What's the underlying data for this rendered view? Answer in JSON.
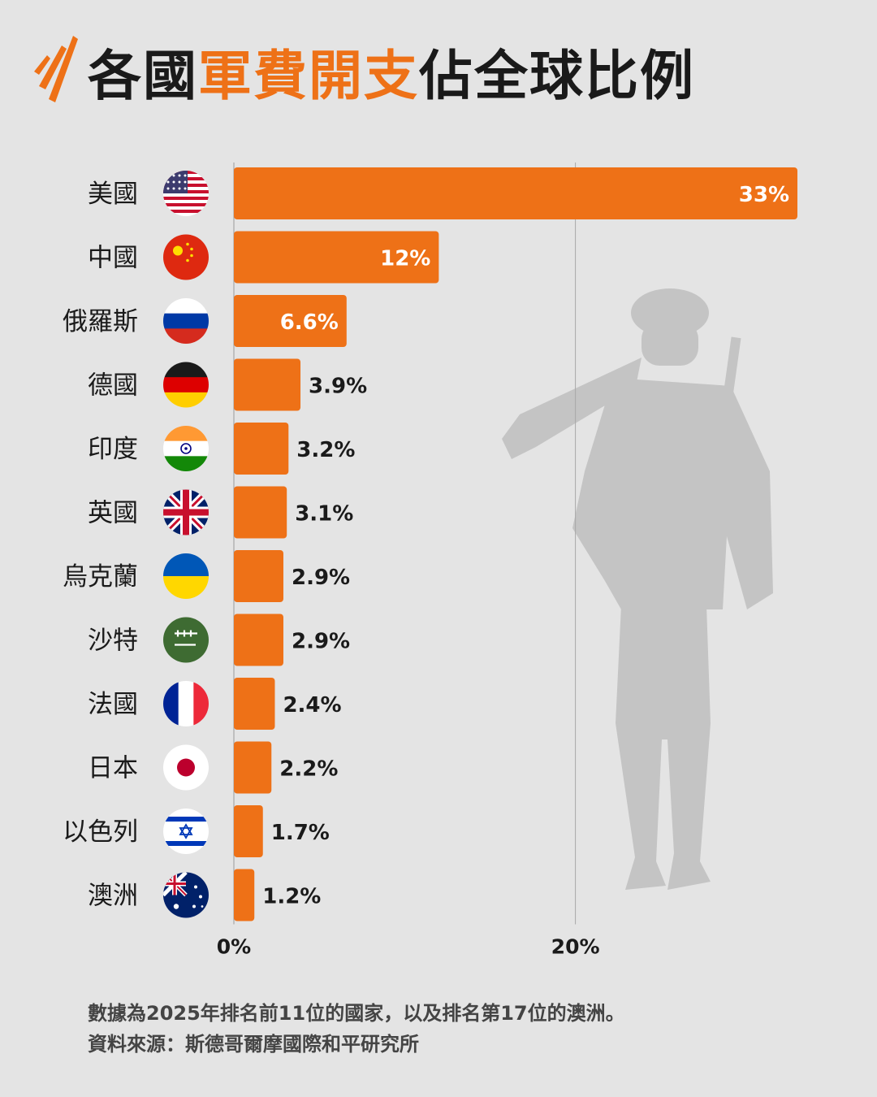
{
  "title": {
    "part1": "各國",
    "highlight": "軍費開支",
    "part2": "佔全球比例"
  },
  "colors": {
    "accent": "#ee7117",
    "background": "#e4e4e4",
    "text": "#1a1a1a",
    "silhouette": "#c4c4c4"
  },
  "chart_data": {
    "type": "bar",
    "orientation": "horizontal",
    "categories": [
      "美國",
      "中國",
      "俄羅斯",
      "德國",
      "印度",
      "英國",
      "烏克蘭",
      "沙特",
      "法國",
      "日本",
      "以色列",
      "澳洲"
    ],
    "flags": [
      "us-flag-icon",
      "china-flag-icon",
      "russia-flag-icon",
      "germany-flag-icon",
      "india-flag-icon",
      "uk-flag-icon",
      "ukraine-flag-icon",
      "saudi-flag-icon",
      "france-flag-icon",
      "japan-flag-icon",
      "israel-flag-icon",
      "australia-flag-icon"
    ],
    "values": [
      33,
      12,
      6.6,
      3.9,
      3.2,
      3.1,
      2.9,
      2.9,
      2.4,
      2.2,
      1.7,
      1.2
    ],
    "value_labels": [
      "33%",
      "12%",
      "6.6%",
      "3.9%",
      "3.2%",
      "3.1%",
      "2.9%",
      "2.9%",
      "2.4%",
      "2.2%",
      "1.7%",
      "1.2%"
    ],
    "x_ticks": [
      0,
      20
    ],
    "x_tick_labels": [
      "0%",
      "20%"
    ],
    "xlim": [
      0,
      33
    ],
    "grid": true
  },
  "footnote": {
    "line1": "數據為2025年排名前11位的國家，以及排名第17位的澳洲。",
    "line2": "資料來源：斯德哥爾摩國際和平研究所"
  }
}
